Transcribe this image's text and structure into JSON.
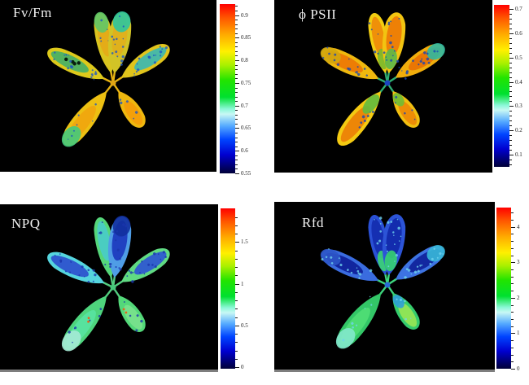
{
  "figure": {
    "background": "#ffffff",
    "panel_background": "#000000",
    "label_color": "#f2f2f2"
  },
  "colorbar_gradient": [
    [
      "#ff0000",
      0
    ],
    [
      "#ff5500",
      8
    ],
    [
      "#ffaa00",
      18
    ],
    [
      "#fff000",
      28
    ],
    [
      "#aaf000",
      36
    ],
    [
      "#22e400",
      45
    ],
    [
      "#00e030",
      55
    ],
    [
      "#8cf8d8",
      62
    ],
    [
      "#c8f8f4",
      65
    ],
    [
      "#55aaff",
      72
    ],
    [
      "#0044ff",
      80
    ],
    [
      "#0000d0",
      89
    ],
    [
      "#000060",
      97
    ],
    [
      "#000038",
      100
    ]
  ],
  "panels": [
    {
      "id": "fvfm",
      "label": "Fv/Fm",
      "ticks": [
        {
          "label": "0.9",
          "pct": 6.5
        },
        {
          "label": "0.85",
          "pct": 19.8
        },
        {
          "label": "0.8",
          "pct": 33.2
        },
        {
          "label": "0.75",
          "pct": 46.6
        },
        {
          "label": "0.7",
          "pct": 60.0
        },
        {
          "label": "0.65",
          "pct": 73.3
        },
        {
          "label": "0.6",
          "pct": 86.6
        },
        {
          "label": "0.55",
          "pct": 100
        }
      ],
      "palette": {
        "petiole": "#e7b212",
        "center": "#e0a515",
        "speckle": "#1d55c5",
        "holes": "#08200f"
      },
      "leaves": [
        {
          "outer": "#d9c41f",
          "inner": "#e5ab18",
          "tip": "#5fc868"
        },
        {
          "outer": "#d2c326",
          "inner": "#dfb01c",
          "tip": "#2ec79e"
        },
        {
          "outer": "#ddc91b",
          "inner": "#4bb164"
        },
        {
          "outer": "#e0c41c",
          "inner": "#41b8ad"
        },
        {
          "outer": "#edc012",
          "inner": "#f0a60f",
          "tip": "#43ca7d"
        },
        {
          "outer": "#efb80f",
          "inner": "#f49e09"
        }
      ]
    },
    {
      "id": "psii",
      "label": "ϕ PSII",
      "ticks": [
        {
          "label": "0.7",
          "pct": 2.5
        },
        {
          "label": "0.6",
          "pct": 17.5
        },
        {
          "label": "0.5",
          "pct": 32.5
        },
        {
          "label": "0.4",
          "pct": 47.5
        },
        {
          "label": "0.3",
          "pct": 62.5
        },
        {
          "label": "0.2",
          "pct": 77.5
        },
        {
          "label": "0.1",
          "pct": 92.5
        }
      ],
      "palette": {
        "petiole": "#2fae72",
        "center": "#1b43c0",
        "speckle": "#1646b5"
      },
      "leaves": [
        {
          "outer": "#f2cd11",
          "inner": "#ee8c09",
          "base": "#7ab92c"
        },
        {
          "outer": "#f2c411",
          "inner": "#ed7c06",
          "base": "#5cb84a"
        },
        {
          "outer": "#efb80e",
          "inner": "#ec7905",
          "tip": "#d2a90e"
        },
        {
          "outer": "#f1ad0c",
          "inner": "#e97304",
          "tip": "#2fb9a2"
        },
        {
          "outer": "#f4ca12",
          "inner": "#ec8207",
          "base": "#62bb3f"
        },
        {
          "outer": "#f1bf10",
          "inner": "#ed8a07",
          "base": "#6fbe35"
        }
      ]
    },
    {
      "id": "npq",
      "label": "NPQ",
      "ticks": [
        {
          "label": "1.5",
          "pct": 21
        },
        {
          "label": "1",
          "pct": 47
        },
        {
          "label": "0.5",
          "pct": 73
        },
        {
          "label": "0",
          "pct": 99
        }
      ],
      "palette": {
        "petiole": "#53cd7f",
        "center": "#46c87a",
        "speckle": "#1a36ad",
        "accent": "#e4641c"
      },
      "leaves": [
        {
          "outer": "#55d67a",
          "inner": "#4accc5"
        },
        {
          "outer": "#4f9de6",
          "inner": "#1e3cbf",
          "tip": "#12309f"
        },
        {
          "outer": "#55d5de",
          "inner": "#2e54cd"
        },
        {
          "outer": "#60da83",
          "inner": "#2f5ad0"
        },
        {
          "outer": "#4ed47d",
          "inner": "#57e3a0",
          "tip": "#a5ead5"
        },
        {
          "outer": "#53d879",
          "inner": "#78e18c"
        }
      ]
    },
    {
      "id": "rfd",
      "label": "Rfd",
      "ticks": [
        {
          "label": "4",
          "pct": 12
        },
        {
          "label": "3",
          "pct": 34
        },
        {
          "label": "2",
          "pct": 56
        },
        {
          "label": "1",
          "pct": 78
        },
        {
          "label": "0",
          "pct": 100
        }
      ],
      "palette": {
        "petiole": "#3ed67e",
        "center": "#2a6ad4",
        "speckle": "#6fd3ee"
      },
      "leaves": [
        {
          "outer": "#2a50d5",
          "inner": "#142db0",
          "base": "#3bd574"
        },
        {
          "outer": "#2c54d7",
          "inner": "#122aac",
          "base": "#36d370"
        },
        {
          "outer": "#3a6cdf",
          "inner": "#10229a",
          "tip": "#2e57c8"
        },
        {
          "outer": "#3d73e2",
          "inner": "#11249c",
          "tip": "#38b8d8"
        },
        {
          "outer": "#33c667",
          "inner": "#4fdd75",
          "tip": "#83e8cc"
        },
        {
          "outer": "#35cc6d",
          "inner": "#93e556",
          "base": "#2f9ed8"
        }
      ]
    }
  ],
  "chart_data": [
    {
      "type": "heatmap",
      "title": "Fv/Fm",
      "subject": "false-color chlorophyll fluorescence image of a six-leaf plant rosette on black background",
      "colorbar_ticks": [
        0.9,
        0.85,
        0.8,
        0.75,
        0.7,
        0.65,
        0.6,
        0.55
      ],
      "colorbar_orientation": "vertical, maximum (red) at top",
      "dominant_values": "leaves mostly 0.78-0.82 (yellow/orange); green-cyan patches ~0.65-0.72 on upper-right leaf tip, upper-left leaf middle (with dark holes) and lower-left tip; scattered blue speckles ~0.6 on right leaf"
    },
    {
      "type": "heatmap",
      "title": "ϕ PSII",
      "subject": "false-color chlorophyll fluorescence image of the same six-leaf rosette",
      "colorbar_ticks": [
        0.7,
        0.6,
        0.5,
        0.4,
        0.3,
        0.2,
        0.1
      ],
      "colorbar_orientation": "vertical, maximum (red) at top",
      "dominant_values": "leaf blades mostly 0.5-0.6 (orange) with yellow margins ~0.65; rosette center and petioles blue-green ~0.2-0.35; teal/blue speckles ~0.3 on right and upper-left leaves"
    },
    {
      "type": "heatmap",
      "title": "NPQ",
      "subject": "false-color chlorophyll fluorescence image of the same six-leaf rosette",
      "colorbar_ticks": [
        1.5,
        1,
        0.5,
        0
      ],
      "colorbar_orientation": "vertical, maximum (red) at top",
      "dominant_values": "leaves mostly green ~0.8-1.1; upper-right pair leaf and interiors of side leaves dark blue ~0.1-0.35; pale-cyan tip ~0.55 on lower-left leaf; few orange dots ~1.4 near center"
    },
    {
      "type": "heatmap",
      "title": "Rfd",
      "subject": "false-color chlorophyll fluorescence image of the same six-leaf rosette",
      "colorbar_ticks": [
        4,
        3,
        2,
        1,
        0
      ],
      "colorbar_orientation": "vertical, maximum (red) at top",
      "dominant_values": "upper and side leaves dark blue ~0.5-1 with cyan speckles; petioles and lower leaves green ~2.5-3; yellow-green core ~3.5 on lower-right leaf; cyan tips ~1.5"
    }
  ]
}
